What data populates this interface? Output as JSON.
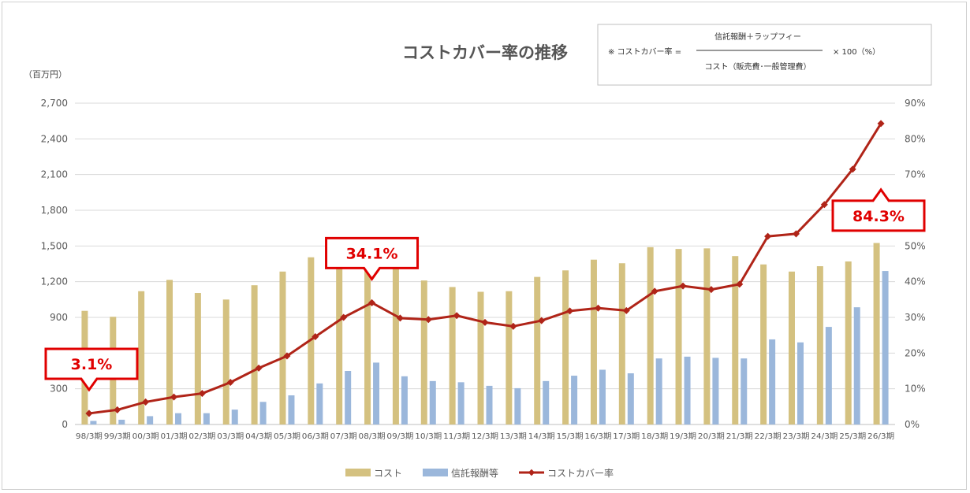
{
  "chart_data": {
    "type": "bar+line",
    "title": "コストカバー率の推移",
    "y_unit_label": "（百万円）",
    "formula": {
      "prefix": "※ コストカバー率 =",
      "numerator": "信託報酬＋ラップフィー",
      "denominator": "コスト（販売費･一般管理費）",
      "suffix": "× 100（%）"
    },
    "categories": [
      "98/3期",
      "99/3期",
      "00/3期",
      "01/3期",
      "02/3期",
      "03/3期",
      "04/3期",
      "05/3期",
      "06/3期",
      "07/3期",
      "08/3期",
      "09/3期",
      "10/3期",
      "11/3期",
      "12/3期",
      "13/3期",
      "14/3期",
      "15/3期",
      "16/3期",
      "17/3期",
      "18/3期",
      "19/3期",
      "20/3期",
      "21/3期",
      "22/3期",
      "23/3期",
      "24/3期",
      "25/3期",
      "26/3期"
    ],
    "y_left": {
      "min": 0,
      "max": 2700,
      "ticks": [
        "0",
        "300",
        "600",
        "900",
        "1,200",
        "1,500",
        "1,800",
        "2,100",
        "2,400",
        "2,700"
      ]
    },
    "y_right": {
      "min": 0,
      "max": 90,
      "ticks": [
        "0%",
        "10%",
        "20%",
        "30%",
        "40%",
        "50%",
        "60%",
        "70%",
        "80%",
        "90%"
      ]
    },
    "grid": true,
    "legend_position": "bottom",
    "series": [
      {
        "name": "コスト",
        "type": "bar",
        "axis": "left",
        "color": "#d4c180",
        "values": [
          955,
          905,
          1120,
          1215,
          1105,
          1050,
          1170,
          1285,
          1405,
          1500,
          1530,
          1355,
          1210,
          1155,
          1115,
          1120,
          1240,
          1295,
          1385,
          1355,
          1490,
          1475,
          1480,
          1415,
          1345,
          1285,
          1330,
          1370,
          1525
        ]
      },
      {
        "name": "信託報酬等",
        "type": "bar",
        "axis": "left",
        "color": "#9bb7db",
        "values": [
          30,
          40,
          70,
          95,
          95,
          125,
          190,
          245,
          345,
          450,
          520,
          405,
          365,
          355,
          325,
          305,
          365,
          410,
          460,
          430,
          555,
          570,
          560,
          555,
          715,
          690,
          820,
          985,
          1290
        ]
      },
      {
        "name": "コストカバー率",
        "type": "line",
        "axis": "right",
        "color": "#b02418",
        "values": [
          3.1,
          4.1,
          6.3,
          7.7,
          8.7,
          11.8,
          15.8,
          19.2,
          24.6,
          30.0,
          34.1,
          29.8,
          29.4,
          30.5,
          28.6,
          27.5,
          29.1,
          31.8,
          32.6,
          31.9,
          37.3,
          38.8,
          37.8,
          39.3,
          52.7,
          53.4,
          61.6,
          71.5,
          84.3
        ]
      }
    ],
    "callouts": [
      {
        "text": "3.1%",
        "category": "98/3期",
        "pointer": "down"
      },
      {
        "text": "34.1%",
        "category": "08/3期",
        "pointer": "down"
      },
      {
        "text": "84.3%",
        "category": "26/3期",
        "pointer": "up"
      }
    ]
  }
}
